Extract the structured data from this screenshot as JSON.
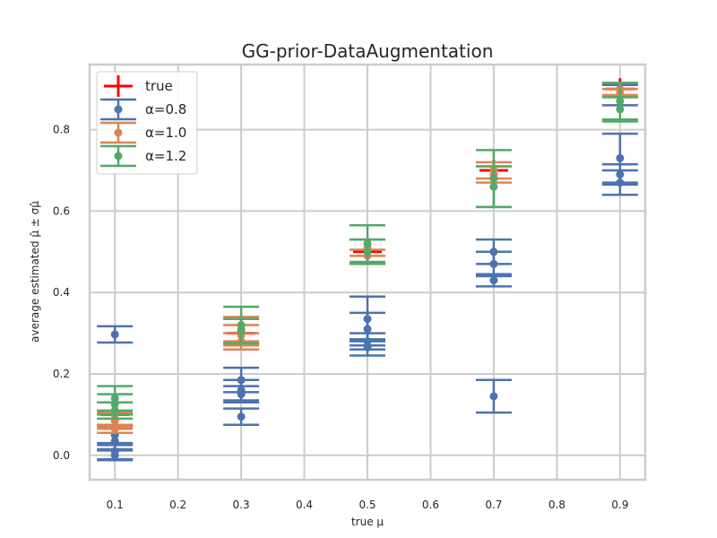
{
  "chart_data": {
    "type": "scatter",
    "title": "GG-prior-DataAugmentation",
    "xlabel": "true μ",
    "ylabel": "average estimated μ̂ ± σμ̂",
    "xlim": [
      0.06,
      0.94
    ],
    "ylim": [
      -0.06,
      0.96
    ],
    "xticks": [
      0.1,
      0.2,
      0.3,
      0.4,
      0.5,
      0.6,
      0.7,
      0.8,
      0.9
    ],
    "xtick_labels": [
      "0.1",
      "0.2",
      "0.3",
      "0.4",
      "0.5",
      "0.6",
      "0.7",
      "0.8",
      "0.9"
    ],
    "yticks": [
      0.0,
      0.2,
      0.4,
      0.6,
      0.8
    ],
    "ytick_labels": [
      "0.0",
      "0.2",
      "0.4",
      "0.6",
      "0.8"
    ],
    "grid": true,
    "legend_position": "top-left",
    "true_series": {
      "name": "true",
      "color": "#ff0000",
      "x": [
        0.1,
        0.3,
        0.5,
        0.7,
        0.9
      ],
      "y": [
        0.1,
        0.3,
        0.5,
        0.7,
        0.9
      ]
    },
    "series": [
      {
        "name": "α=0.8",
        "color": "#4c72b0",
        "points": [
          {
            "x": 0.1,
            "y": 0.297,
            "err": 0.02
          },
          {
            "x": 0.1,
            "y": 0.05,
            "err": 0.025
          },
          {
            "x": 0.1,
            "y": 0.035,
            "err": 0.02
          },
          {
            "x": 0.1,
            "y": 0.01,
            "err": 0.02
          },
          {
            "x": 0.1,
            "y": 0.0,
            "err": 0.012
          },
          {
            "x": 0.3,
            "y": 0.185,
            "err": 0.03
          },
          {
            "x": 0.3,
            "y": 0.16,
            "err": 0.025
          },
          {
            "x": 0.3,
            "y": 0.15,
            "err": 0.02
          },
          {
            "x": 0.3,
            "y": 0.095,
            "err": 0.02
          },
          {
            "x": 0.5,
            "y": 0.335,
            "err": 0.055
          },
          {
            "x": 0.5,
            "y": 0.31,
            "err": 0.04
          },
          {
            "x": 0.5,
            "y": 0.28,
            "err": 0.02
          },
          {
            "x": 0.5,
            "y": 0.265,
            "err": 0.02
          },
          {
            "x": 0.7,
            "y": 0.5,
            "err": 0.03
          },
          {
            "x": 0.7,
            "y": 0.47,
            "err": 0.03
          },
          {
            "x": 0.7,
            "y": 0.43,
            "err": 0.015
          },
          {
            "x": 0.7,
            "y": 0.145,
            "err": 0.04
          },
          {
            "x": 0.9,
            "y": 0.885,
            "err": 0.025
          },
          {
            "x": 0.9,
            "y": 0.73,
            "err": 0.06
          },
          {
            "x": 0.9,
            "y": 0.69,
            "err": 0.025
          },
          {
            "x": 0.9,
            "y": 0.67,
            "err": 0.03
          }
        ]
      },
      {
        "name": "α=1.0",
        "color": "#dd8452",
        "points": [
          {
            "x": 0.1,
            "y": 0.1,
            "err": 0.03
          },
          {
            "x": 0.1,
            "y": 0.085,
            "err": 0.02
          },
          {
            "x": 0.1,
            "y": 0.065,
            "err": 0.01
          },
          {
            "x": 0.3,
            "y": 0.31,
            "err": 0.03
          },
          {
            "x": 0.3,
            "y": 0.295,
            "err": 0.025
          },
          {
            "x": 0.3,
            "y": 0.28,
            "err": 0.02
          },
          {
            "x": 0.5,
            "y": 0.51,
            "err": 0.02
          },
          {
            "x": 0.5,
            "y": 0.49,
            "err": 0.015
          },
          {
            "x": 0.7,
            "y": 0.7,
            "err": 0.02
          },
          {
            "x": 0.7,
            "y": 0.69,
            "err": 0.02
          },
          {
            "x": 0.9,
            "y": 0.9,
            "err": 0.015
          },
          {
            "x": 0.9,
            "y": 0.89,
            "err": 0.01
          }
        ]
      },
      {
        "name": "α=1.2",
        "color": "#55a868",
        "points": [
          {
            "x": 0.1,
            "y": 0.14,
            "err": 0.03
          },
          {
            "x": 0.1,
            "y": 0.125,
            "err": 0.025
          },
          {
            "x": 0.1,
            "y": 0.11,
            "err": 0.02
          },
          {
            "x": 0.3,
            "y": 0.32,
            "err": 0.045
          },
          {
            "x": 0.3,
            "y": 0.305,
            "err": 0.03
          },
          {
            "x": 0.5,
            "y": 0.52,
            "err": 0.045
          },
          {
            "x": 0.5,
            "y": 0.5,
            "err": 0.03
          },
          {
            "x": 0.7,
            "y": 0.68,
            "err": 0.07
          },
          {
            "x": 0.7,
            "y": 0.66,
            "err": 0.05
          },
          {
            "x": 0.9,
            "y": 0.87,
            "err": 0.045
          },
          {
            "x": 0.9,
            "y": 0.85,
            "err": 0.03
          }
        ]
      }
    ]
  }
}
